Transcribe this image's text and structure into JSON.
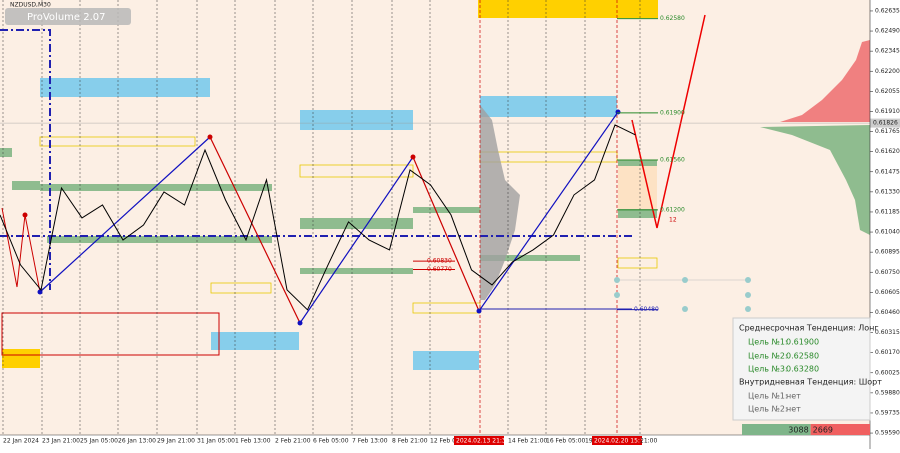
{
  "chart_data": {
    "type": "line",
    "title": "NZDUSD,M30",
    "indicator": "ProVolume 2.07",
    "ylim": [
      0.59576,
      0.62714
    ],
    "yticks": [
      {
        "value": 0.62635,
        "label": "0.62635"
      },
      {
        "value": 0.6249,
        "label": "0.62490"
      },
      {
        "value": 0.62345,
        "label": "0.62345"
      },
      {
        "value": 0.622,
        "label": "0.62200"
      },
      {
        "value": 0.62055,
        "label": "0.62055"
      },
      {
        "value": 0.6191,
        "label": "0.61910"
      },
      {
        "value": 0.61765,
        "label": "0.61765"
      },
      {
        "value": 0.6162,
        "label": "0.61620"
      },
      {
        "value": 0.61475,
        "label": "0.61475"
      },
      {
        "value": 0.6133,
        "label": "0.61330"
      },
      {
        "value": 0.61185,
        "label": "0.61185"
      },
      {
        "value": 0.6104,
        "label": "0.61040"
      },
      {
        "value": 0.60895,
        "label": "0.60895"
      },
      {
        "value": 0.6075,
        "label": "0.60750"
      },
      {
        "value": 0.60605,
        "label": "0.60605"
      },
      {
        "value": 0.6046,
        "label": "0.60460"
      },
      {
        "value": 0.60315,
        "label": "0.60315"
      },
      {
        "value": 0.6017,
        "label": "0.60170"
      },
      {
        "value": 0.60025,
        "label": "0.60025"
      },
      {
        "value": 0.5988,
        "label": "0.59880"
      },
      {
        "value": 0.59735,
        "label": "0.59735"
      },
      {
        "value": 0.5959,
        "label": "0.59590"
      }
    ],
    "time_labels": [
      "22 Jan 2024",
      "23 Jan 21:00",
      "25 Jan 05:00",
      "26 Jan 13:00",
      "29 Jan 21:00",
      "31 Jan 05:00",
      "1 Feb 13:00",
      "2 Feb 21:00",
      "6 Feb 05:00",
      "7 Feb 13:00",
      "8 Feb 21:00",
      "12 Feb 05:00",
      "2024.02.13 21:30",
      "14 Feb 21:00",
      "16 Feb 05:00",
      "19",
      "2024.02.20 15:30",
      "21:00"
    ],
    "color": "#000000",
    "values": [
      0.61164,
      0.60803,
      0.60623,
      0.61358,
      0.61142,
      0.61235,
      0.60983,
      0.61091,
      0.61329,
      0.61235,
      0.61632,
      0.61271,
      0.60983,
      0.61416,
      0.60623,
      0.60479,
      0.60803,
      0.61113,
      0.60983,
      0.60911,
      0.61488,
      0.6138,
      0.61164,
      0.60767,
      0.60659,
      0.60825,
      0.60911,
      0.61019,
      0.61308,
      0.61416,
      0.61813,
      0.61741
    ],
    "last_price": 0.61826,
    "levels": [
      {
        "value": 0.6258,
        "label": "0.62580"
      },
      {
        "value": 0.619,
        "label": "0.61900"
      },
      {
        "value": 0.6156,
        "label": "0.61560"
      },
      {
        "value": 0.612,
        "label": "0.61200"
      },
      {
        "value": 0.6048,
        "label": "0.60480"
      },
      {
        "value": 0.6083,
        "label": "0.60830"
      },
      {
        "value": 0.6077,
        "label": "0.60770"
      }
    ],
    "marker": "12"
  },
  "panel": {
    "mid_trend": "Среднесрочная Тенденция: Лонг",
    "mid_targets": [
      {
        "name": "Цель №1:",
        "value": "0.61900"
      },
      {
        "name": "Цель №2:",
        "value": "0.62580"
      },
      {
        "name": "Цель №3:",
        "value": "0.63280"
      }
    ],
    "intraday_trend": "Внутридневная Тенденция: Шорт",
    "intraday_targets": [
      {
        "name": "Цель №1:",
        "value": "нет"
      },
      {
        "name": "Цель №2:",
        "value": "нет"
      }
    ]
  },
  "volume": {
    "buy": 3088,
    "sell": 2669
  }
}
